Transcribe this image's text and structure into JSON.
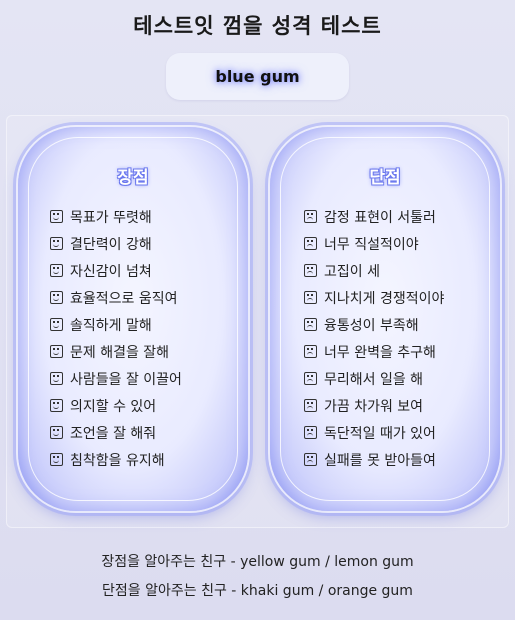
{
  "header": {
    "title": "테스트잇 껌을 성격 테스트",
    "result": "blue gum"
  },
  "strengths": {
    "heading": "장점",
    "icon": "smile-icon",
    "items": [
      "목표가 뚜렷해",
      "결단력이 강해",
      "자신감이 넘쳐",
      "효율적으로 움직여",
      "솔직하게 말해",
      "문제 해결을 잘해",
      "사람들을 잘 이끌어",
      "의지할 수 있어",
      "조언을 잘 해줘",
      "침착함을 유지해"
    ]
  },
  "weaknesses": {
    "heading": "단점",
    "icon": "frown-icon",
    "items": [
      "감정 표현이 서툴러",
      "너무 직설적이야",
      "고집이 세",
      "지나치게 경쟁적이야",
      "융통성이 부족해",
      "너무 완벽을 추구해",
      "무리해서 일을 해",
      "가끔 차가워 보여",
      "독단적일 때가 있어",
      "실패를 못 받아들여"
    ]
  },
  "footer": {
    "line1": "장점을 알아주는 친구 - yellow gum / lemon gum",
    "line2": "단점을 알아주는 친구 - khaki gum / orange gum"
  },
  "colors": {
    "accent": "#6b78ee",
    "card_glow": "#9ea7f4",
    "background": "#e1e2f3"
  }
}
